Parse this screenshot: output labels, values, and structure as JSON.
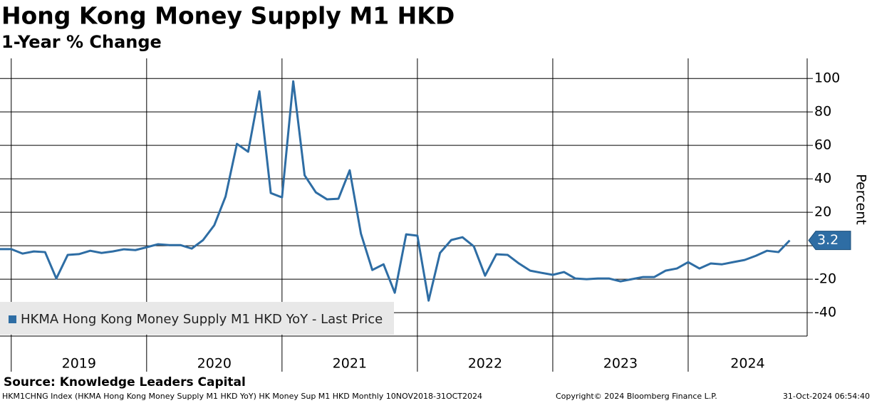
{
  "chart_data": {
    "type": "line",
    "title": "Hong Kong Money Supply M1 HKD",
    "subtitle": "1-Year % Change",
    "y_label": "Percent",
    "source": "Source: Knowledge Leaders Capital",
    "footer_left": "HKM1CHNG Index (HKMA Hong Kong Money Supply M1 HKD YoY) HK Money Sup M1 HKD  Monthly 10NOV2018-31OCT2024",
    "footer_middle": "Copyright© 2024 Bloomberg Finance L.P.",
    "footer_right": "31-Oct-2024 06:54:40",
    "x": [
      2018.917,
      2019,
      2019.083,
      2019.167,
      2019.25,
      2019.333,
      2019.417,
      2019.5,
      2019.583,
      2019.667,
      2019.75,
      2019.833,
      2019.917,
      2020,
      2020.083,
      2020.167,
      2020.25,
      2020.333,
      2020.417,
      2020.5,
      2020.583,
      2020.667,
      2020.75,
      2020.833,
      2020.917,
      2021,
      2021.083,
      2021.167,
      2021.25,
      2021.333,
      2021.417,
      2021.5,
      2021.583,
      2021.667,
      2021.75,
      2021.833,
      2021.917,
      2022,
      2022.083,
      2022.167,
      2022.25,
      2022.333,
      2022.417,
      2022.5,
      2022.583,
      2022.667,
      2022.75,
      2022.833,
      2022.917,
      2023,
      2023.083,
      2023.167,
      2023.25,
      2023.333,
      2023.417,
      2023.5,
      2023.583,
      2023.667,
      2023.75,
      2023.833,
      2023.917,
      2024,
      2024.083,
      2024.167,
      2024.25,
      2024.333,
      2024.417,
      2024.5,
      2024.583,
      2024.667,
      2024.75
    ],
    "series": [
      {
        "name": "HKMA Hong Kong Money Supply M1 HKD YoY - Last Price",
        "color": "#2e6da4",
        "values": [
          -2,
          -2,
          -4.7,
          -3.4,
          -3.8,
          -19.6,
          -5.5,
          -5,
          -3,
          -4.3,
          -3.4,
          -2.1,
          -2.6,
          -0.9,
          0.9,
          0.4,
          0.4,
          -1.7,
          3.4,
          12.3,
          29.4,
          60.9,
          56.2,
          92.3,
          31.5,
          28.9,
          98.3,
          42.1,
          31.9,
          27.7,
          28.1,
          45.1,
          7.2,
          -14.5,
          -11.1,
          -28.1,
          6.8,
          6,
          -32.8,
          -4.3,
          3.4,
          5.1,
          -0.4,
          -17.9,
          -5.1,
          -5.5,
          -10.6,
          -14.9,
          -16.2,
          -17.4,
          -15.7,
          -19.6,
          -20,
          -19.6,
          -19.6,
          -21.3,
          -20,
          -18.7,
          -18.7,
          -14.9,
          -13.6,
          -9.8,
          -13.6,
          -10.6,
          -11.1,
          -9.8,
          -8.5,
          -6,
          -3,
          -3.8,
          3.2
        ]
      }
    ],
    "xlim": [
      2018.917,
      2024.879
    ],
    "xticks": [
      2019,
      2020,
      2021,
      2022,
      2023,
      2024
    ],
    "ylim": [
      -54,
      112
    ],
    "yticks": [
      100,
      80,
      60,
      40,
      20,
      0,
      -20,
      -40
    ],
    "grid": true,
    "legend": "lower left"
  }
}
